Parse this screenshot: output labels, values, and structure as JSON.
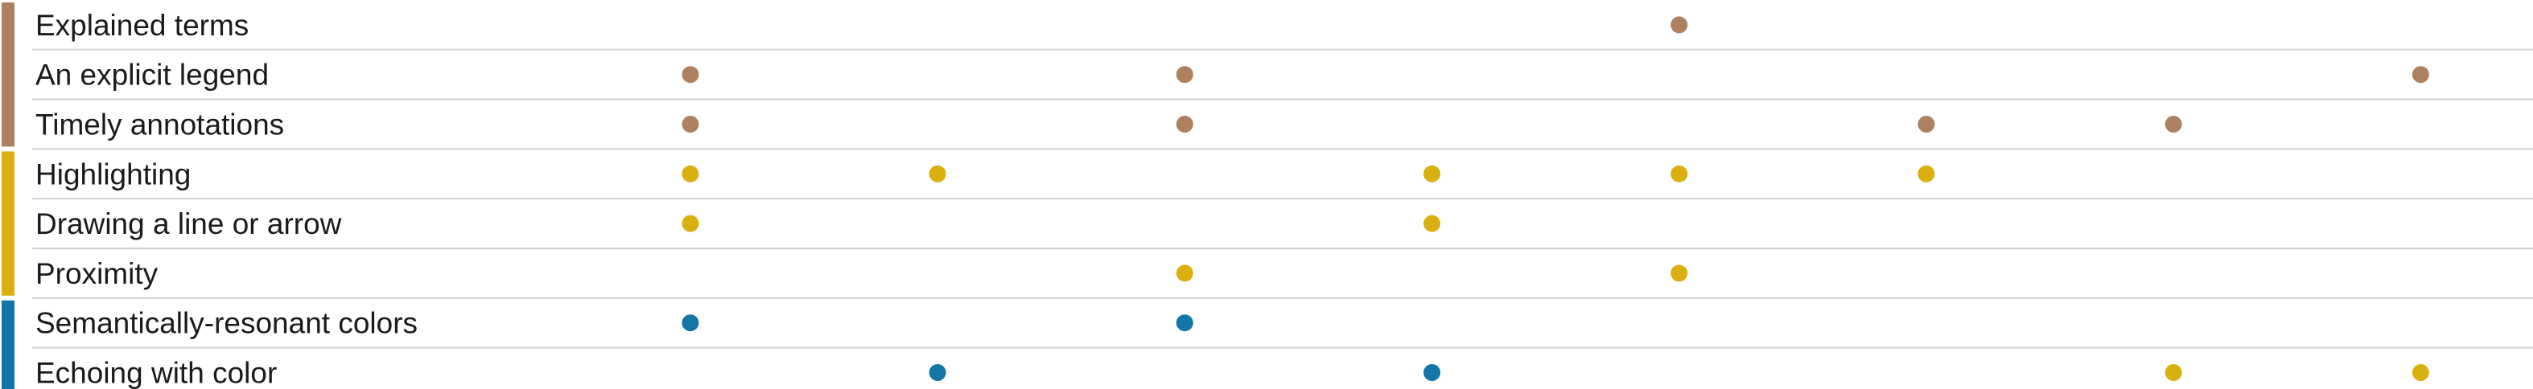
{
  "colors": {
    "brown": "#ad8060",
    "yellow": "#d9b00f",
    "blue": "#1276a7",
    "divider": "#d0d0d0"
  },
  "columns": 8,
  "rows": [
    {
      "label": "Explained terms",
      "group": "brown",
      "marks": [
        {
          "col": 5,
          "color": "brown"
        }
      ]
    },
    {
      "label": "An explicit legend",
      "group": "brown",
      "marks": [
        {
          "col": 1,
          "color": "brown"
        },
        {
          "col": 3,
          "color": "brown"
        },
        {
          "col": 8,
          "color": "brown"
        }
      ]
    },
    {
      "label": "Timely annotations",
      "group": "brown",
      "marks": [
        {
          "col": 1,
          "color": "brown"
        },
        {
          "col": 3,
          "color": "brown"
        },
        {
          "col": 6,
          "color": "brown"
        },
        {
          "col": 7,
          "color": "brown"
        }
      ]
    },
    {
      "label": "Highlighting",
      "group": "yellow",
      "marks": [
        {
          "col": 1,
          "color": "yellow"
        },
        {
          "col": 2,
          "color": "yellow"
        },
        {
          "col": 4,
          "color": "yellow"
        },
        {
          "col": 5,
          "color": "yellow"
        },
        {
          "col": 6,
          "color": "yellow"
        }
      ]
    },
    {
      "label": "Drawing a line or arrow",
      "group": "yellow",
      "marks": [
        {
          "col": 1,
          "color": "yellow"
        },
        {
          "col": 4,
          "color": "yellow"
        }
      ]
    },
    {
      "label": "Proximity",
      "group": "yellow",
      "marks": [
        {
          "col": 3,
          "color": "yellow"
        },
        {
          "col": 5,
          "color": "yellow"
        }
      ]
    },
    {
      "label": "Semantically-resonant colors",
      "group": "blue",
      "marks": [
        {
          "col": 1,
          "color": "blue"
        },
        {
          "col": 3,
          "color": "blue"
        }
      ]
    },
    {
      "label": "Echoing with color",
      "group": "blue",
      "marks": [
        {
          "col": 2,
          "color": "blue"
        },
        {
          "col": 4,
          "color": "blue"
        },
        {
          "col": 7,
          "color": "yellow"
        },
        {
          "col": 8,
          "color": "yellow"
        }
      ]
    }
  ]
}
